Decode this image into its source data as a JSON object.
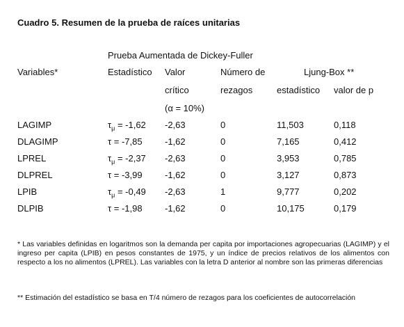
{
  "header": {
    "title": "Cuadro 5.  Resumen de la prueba de raíces unitarias"
  },
  "table": {
    "group_header": "Prueba Aumentada de Dickey-Fuller",
    "columns": {
      "variables": "Variables*",
      "statistic": "Estadístico",
      "critical": [
        "Valor",
        "crítico",
        "(α = 10%)"
      ],
      "lags": [
        "Número de",
        "rezagos"
      ],
      "ljung_box": "Ljung-Box **",
      "lb_statistic": "estadístico",
      "lb_p": "valor de p"
    },
    "rows": [
      {
        "variable": "LAGIMP",
        "symbol": "τ",
        "sub": "μ",
        "statistic": "= -1,62",
        "critical": "-2,63",
        "lags": "0",
        "lb_statistic": "11,503",
        "lb_p": "0,118"
      },
      {
        "variable": "DLAGIMP",
        "symbol": "τ",
        "statistic": "= -7,85",
        "critical": "-1,62",
        "lags": "0",
        "lb_statistic": "7,165",
        "lb_p": "0,412"
      },
      {
        "variable": "LPREL",
        "symbol": "τ",
        "sub": "μ",
        "statistic": "= -2,37",
        "critical": "-2,63",
        "lags": "0",
        "lb_statistic": "3,953",
        "lb_p": "0,785"
      },
      {
        "variable": "DLPREL",
        "symbol": "τ",
        "statistic": "= -3,99",
        "critical": "-1,62",
        "lags": "0",
        "lb_statistic": "3,127",
        "lb_p": "0,873"
      },
      {
        "variable": "LPIB",
        "symbol": "τ",
        "sub": "μ",
        "statistic": "= -0,49",
        "critical": "-2,63",
        "lags": "1",
        "lb_statistic": "9,777",
        "lb_p": "0,202"
      },
      {
        "variable": "DLPIB",
        "symbol": "τ",
        "statistic": "= -1,98",
        "critical": "-1,62",
        "lags": "0",
        "lb_statistic": "10,175",
        "lb_p": "0,179"
      }
    ]
  },
  "notes": [
    "* Las variables definidas en logaritmos son la demanda per capita por importaciones agropecuarias (LAGIMP) y el ingreso per capita (LPIB) en pesos constantes de 1975, y un índice de precios relativos de los alimentos con respecto a los no alimentos (LPREL). Las variables con la letra D anterior al nombre son las primeras diferencias",
    "** Estimación del estadístico se basa en T/4 número de rezagos para los coeficientes de autocorrelación"
  ]
}
